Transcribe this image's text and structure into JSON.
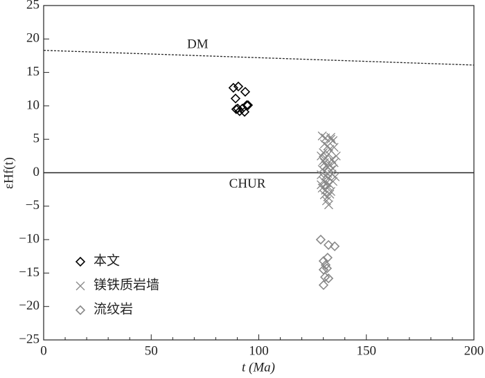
{
  "chart_data": {
    "type": "scatter",
    "xlabel": "t (Ma)",
    "ylabel": "εHf(t)",
    "xlim": [
      0,
      200
    ],
    "ylim": [
      -25,
      25
    ],
    "xticks": [
      0,
      50,
      100,
      150,
      200
    ],
    "xminorticks": [
      10,
      20,
      30,
      40,
      60,
      70,
      80,
      90,
      110,
      120,
      130,
      140,
      160,
      170,
      180,
      190
    ],
    "yticks": [
      {
        "value": -25,
        "label": "−25"
      },
      {
        "value": -20,
        "label": "−20"
      },
      {
        "value": -15,
        "label": "−15"
      },
      {
        "value": -10,
        "label": "−10"
      },
      {
        "value": -5,
        "label": "−5"
      },
      0,
      5,
      10,
      15,
      20,
      25
    ],
    "reference_lines": [
      {
        "label": "DM",
        "x": [
          0,
          200
        ],
        "y": [
          18.3,
          16.1
        ],
        "style": "dashed",
        "label_x": 71.6,
        "label_y": 19.1
      },
      {
        "label": "CHUR",
        "x": [
          0,
          200
        ],
        "y": [
          0,
          0
        ],
        "style": "solid",
        "label_x": 94.7,
        "label_y": -1.8
      }
    ],
    "legend": "lower left",
    "series": [
      {
        "name": "本文",
        "color": "#000000",
        "marker": "diamond",
        "x": [
          88.2,
          90.5,
          89.2,
          93.7,
          89.5,
          91.1,
          92.4,
          94.4,
          93.4,
          95.0,
          90.2
        ],
        "values": [
          12.7,
          12.9,
          11.1,
          12.1,
          9.5,
          9.2,
          9.6,
          10.1,
          9.1,
          10.1,
          9.6
        ]
      },
      {
        "name": "镁铁质岩墙",
        "color": "#888888",
        "marker": "cross",
        "x": [
          129.5,
          131,
          133.5,
          134.5,
          130,
          132,
          133,
          135,
          129,
          131,
          132.5,
          134,
          130.5,
          131.5,
          133,
          135,
          129.5,
          130.5,
          132,
          133.5,
          134.5,
          129,
          131,
          132.5,
          134,
          135.5,
          130,
          131.5,
          133,
          134.5,
          129.5,
          131,
          132,
          133.5,
          130.5,
          132,
          133,
          131.5,
          132.5,
          130,
          132,
          136,
          129,
          133.5,
          130.5
        ],
        "values": [
          5.5,
          5.2,
          5.3,
          4.8,
          3,
          4,
          3.5,
          3.8,
          2.5,
          2.2,
          2.8,
          2,
          1.5,
          1,
          1.2,
          1.5,
          0.5,
          0.2,
          0.8,
          0.4,
          0.6,
          -0.3,
          -0.5,
          -0.8,
          -0.2,
          -0.6,
          -1.2,
          -1.5,
          -1.8,
          -1.3,
          -2.3,
          -2.6,
          -2,
          -2.8,
          -3.3,
          -3.6,
          -3.2,
          -4.2,
          -4.8,
          1.8,
          -0.1,
          2.5,
          -1.8,
          5.0,
          4.3
        ]
      },
      {
        "name": "流纹岩",
        "color": "#888888",
        "marker": "diamond",
        "x": [
          128.8,
          132.4,
          135.3,
          130.1,
          132.0,
          131.1,
          130.1,
          131.7,
          130.8,
          132.4,
          130.1
        ],
        "values": [
          -10.0,
          -10.8,
          -11.0,
          -13.2,
          -12.7,
          -13.8,
          -14.5,
          -14.3,
          -15.6,
          -15.8,
          -16.8
        ]
      }
    ]
  }
}
